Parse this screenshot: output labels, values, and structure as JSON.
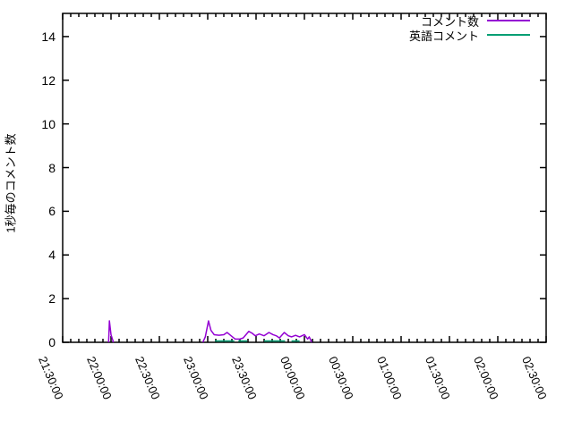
{
  "chart_data": {
    "type": "line",
    "title": "",
    "xlabel": "",
    "ylabel": "1秒毎のコメント数",
    "grid": false,
    "legend_position": "top-right-inside",
    "x_axis": {
      "tick_labels": [
        "21:30:00",
        "22:00:00",
        "22:30:00",
        "23:00:00",
        "23:30:00",
        "00:00:00",
        "00:30:00",
        "01:00:00",
        "01:30:00",
        "02:00:00",
        "02:30:00"
      ],
      "major_tick_minutes": 30,
      "minor_tick_minutes": 5,
      "range_minutes": [
        0,
        300
      ],
      "x_unit": "minutes_after_first_tick"
    },
    "y_axis": {
      "ticks": [
        0,
        2,
        4,
        6,
        8,
        10,
        12,
        14
      ],
      "range": [
        0,
        15.06
      ]
    },
    "series": [
      {
        "name": "コメント数",
        "color": "#9400D3",
        "segments": [
          [
            [
              28.5,
              0
            ],
            [
              29,
              0.98
            ],
            [
              30,
              0.35
            ],
            [
              31.5,
              0
            ]
          ],
          [
            [
              87,
              0
            ],
            [
              88.5,
              0.25
            ],
            [
              90.5,
              0.98
            ],
            [
              92,
              0.55
            ],
            [
              94,
              0.35
            ],
            [
              97,
              0.32
            ],
            [
              100,
              0.35
            ],
            [
              102,
              0.45
            ],
            [
              104.5,
              0.3
            ],
            [
              107,
              0.15
            ],
            [
              110,
              0.15
            ],
            [
              112,
              0.2
            ],
            [
              115.5,
              0.5
            ],
            [
              117.5,
              0.42
            ],
            [
              119.5,
              0.3
            ],
            [
              122,
              0.38
            ],
            [
              125,
              0.3
            ],
            [
              128,
              0.45
            ],
            [
              130.5,
              0.35
            ],
            [
              132.5,
              0.3
            ],
            [
              134.5,
              0.2
            ],
            [
              137.5,
              0.45
            ],
            [
              140,
              0.3
            ],
            [
              142,
              0.25
            ],
            [
              144.5,
              0.32
            ],
            [
              147,
              0.25
            ],
            [
              150,
              0.35
            ],
            [
              152,
              0.15
            ],
            [
              153,
              0.25
            ],
            [
              154.5,
              0
            ]
          ]
        ]
      },
      {
        "name": "英語コメント",
        "color": "#009E73",
        "segments": [
          [
            [
              94.5,
              0.06
            ],
            [
              106.5,
              0.06
            ]
          ],
          [
            [
              109,
              0.06
            ],
            [
              114.5,
              0.06
            ]
          ],
          [
            [
              125,
              0.06
            ],
            [
              138,
              0.06
            ]
          ],
          [
            [
              142,
              0.06
            ],
            [
              147,
              0.06
            ]
          ]
        ]
      }
    ]
  }
}
